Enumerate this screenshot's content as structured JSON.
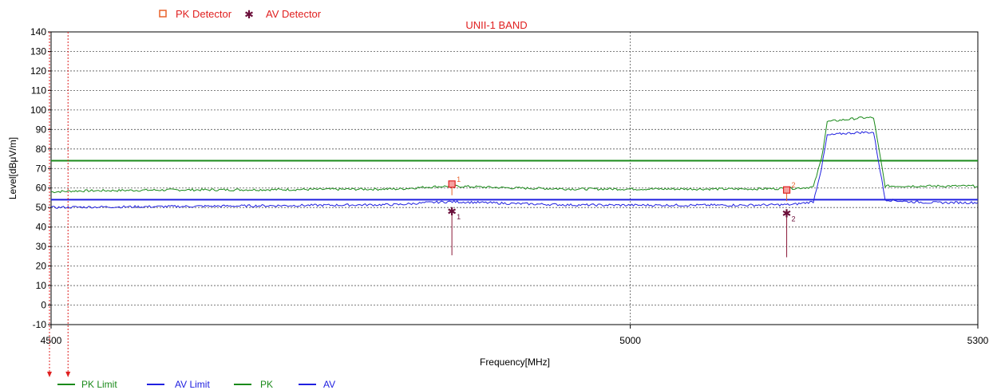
{
  "legend_top": [
    {
      "marker": "square",
      "label": "PK Detector",
      "color": "#e8622a"
    },
    {
      "marker": "star",
      "label": "AV Detector",
      "color": "#6b0f3a"
    }
  ],
  "legend_bottom": [
    {
      "label": "PK Limit",
      "color": "#1a8a1a"
    },
    {
      "label": "AV Limit",
      "color": "#2020e0"
    },
    {
      "label": "PK",
      "color": "#1a8a1a"
    },
    {
      "label": "AV",
      "color": "#2020e0"
    }
  ],
  "chart_data": {
    "type": "line",
    "title": "UNII-1 BAND",
    "xlabel": "Frequency[MHz]",
    "ylabel": "Level[dBμV/m]",
    "xlim": [
      4500,
      5300
    ],
    "ylim": [
      -10,
      140
    ],
    "x_ticks": [
      4500,
      5000,
      5300
    ],
    "y_ticks": [
      -10,
      0,
      10,
      20,
      30,
      40,
      50,
      60,
      70,
      80,
      90,
      100,
      110,
      120,
      130,
      140
    ],
    "grid": true,
    "limits": [
      {
        "name": "PK Limit",
        "value": 74,
        "color": "#1a8a1a"
      },
      {
        "name": "AV Limit",
        "value": 54,
        "color": "#2020e0"
      }
    ],
    "series": [
      {
        "name": "PK",
        "color": "#1a8a1a",
        "x": [
          4500,
          4520,
          4600,
          4700,
          4800,
          4825,
          4845,
          4900,
          4950,
          5000,
          5100,
          5140,
          5158,
          5165,
          5170,
          5185,
          5200,
          5210,
          5220,
          5240,
          5260,
          5300
        ],
        "y": [
          58,
          58.5,
          59,
          59.2,
          59.5,
          60.5,
          61,
          60,
          59.5,
          59.5,
          59.5,
          59.8,
          60.5,
          75,
          94,
          95,
          96,
          96,
          61,
          61,
          61,
          61
        ]
      },
      {
        "name": "AV",
        "color": "#2020e0",
        "x": [
          4500,
          4520,
          4600,
          4700,
          4800,
          4825,
          4845,
          4900,
          4950,
          5000,
          5100,
          5140,
          5158,
          5165,
          5170,
          5185,
          5200,
          5210,
          5220,
          5240,
          5260,
          5300
        ],
        "y": [
          50,
          50.2,
          50.5,
          51,
          51.5,
          52.5,
          53,
          52,
          51.3,
          51.2,
          51.2,
          51.5,
          53,
          70,
          87,
          88,
          88.5,
          88.5,
          54,
          53,
          52.5,
          52.5
        ]
      }
    ],
    "pk_markers": [
      {
        "id": "1",
        "x": 4846,
        "y": 62
      },
      {
        "id": "2",
        "x": 5135,
        "y": 59
      }
    ],
    "av_markers": [
      {
        "id": "1",
        "x": 4846,
        "y": 48
      },
      {
        "id": "2",
        "x": 5135,
        "y": 47
      }
    ],
    "edge_markers": [
      4500,
      4516
    ]
  }
}
